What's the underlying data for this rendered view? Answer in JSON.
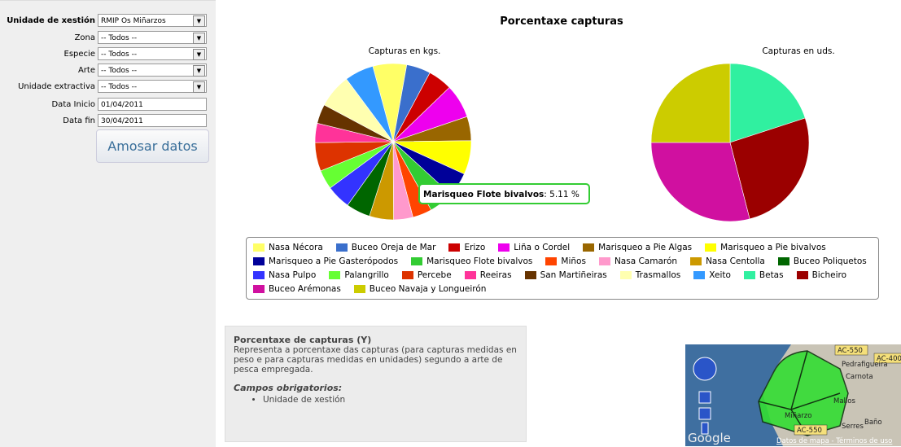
{
  "form": {
    "fields": [
      {
        "label": "Unidade de xestión",
        "value": "RMIP Os Miñarzos"
      },
      {
        "label": "Zona",
        "value": "-- Todos --"
      },
      {
        "label": "Especie",
        "value": "-- Todos --"
      },
      {
        "label": "Arte",
        "value": "-- Todos --"
      },
      {
        "label": "Unidade extractiva",
        "value": "-- Todos --"
      },
      {
        "label": "Data Inicio",
        "value": "01/04/2011"
      },
      {
        "label": "Data fin",
        "value": "30/04/2011"
      }
    ],
    "button": "Amosar datos"
  },
  "title": "Porcentaxe capturas",
  "chart_data": [
    {
      "type": "pie",
      "title": "Capturas en kgs.",
      "categories": [
        "Nasa Nécora",
        "Buceo Oreja de Mar",
        "Erizo",
        "Liña o Cordel",
        "Marisqueo a Pie Algas",
        "Marisqueo a Pie bivalvos",
        "Marisqueo a Pie Gasterópodos",
        "Marisqueo Flote bivalvos",
        "Miños",
        "Nasa Camarón",
        "Nasa Centolla",
        "Buceo Poliquetos",
        "Nasa Pulpo",
        "Palangrillo",
        "Percebe",
        "Reeiras",
        "San Martiñeiras",
        "Trasmallos",
        "Xeito"
      ],
      "values": [
        7,
        5,
        5,
        7,
        5,
        7,
        5,
        5.11,
        4,
        4,
        5,
        5,
        5,
        4,
        5.89,
        4,
        4,
        7,
        6
      ],
      "colors": [
        "#ffff66",
        "#3a6fcc",
        "#cc0000",
        "#ee00ee",
        "#996600",
        "#ffff00",
        "#000099",
        "#33cc33",
        "#ff4400",
        "#ff99cc",
        "#cc9900",
        "#006600",
        "#3333ff",
        "#66ff33",
        "#dd3300",
        "#ff3399",
        "#663300",
        "#ffffb0",
        "#3399ff"
      ],
      "tooltip": ": 5.11 %"
    },
    {
      "type": "pie",
      "title": "Capturas en uds.",
      "categories": [
        "Betas",
        "Bicheiro",
        "Buceo Arémonas",
        "Buceo Navaja y Longueirón"
      ],
      "values": [
        20,
        26,
        29,
        25
      ],
      "colors": [
        "#30f0a0",
        "#9b0000",
        "#d010a0",
        "#cccc00"
      ]
    }
  ],
  "info": {
    "title": "Porcentaxe de capturas (Y)",
    "text": "Representa a porcentaxe das capturas (para capturas medidas en peso e para capturas medidas en unidades) segundo a arte de pesca empregada.",
    "required_title": "Campos obrigatorios:",
    "required": [
      "Unidade de xestión"
    ]
  },
  "map": {
    "labels": [
      "AC-550",
      "AC-400",
      "Pedrafigueira",
      "Carnota",
      "Mallos",
      "Miñarzo",
      "AC-550",
      "Serres",
      "Baño"
    ],
    "logo": "Google",
    "footer": "Datos de mapa - Términos de uso"
  }
}
